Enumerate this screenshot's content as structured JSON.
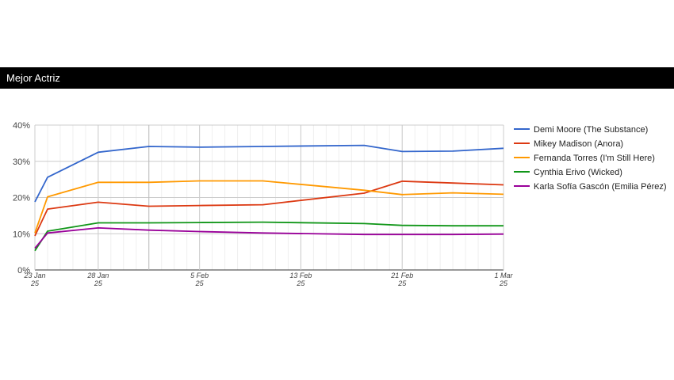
{
  "header": {
    "title": "Mejor Actriz"
  },
  "chart_data": {
    "type": "line",
    "title": "",
    "xlabel": "",
    "ylabel": "",
    "ylim": [
      0,
      40
    ],
    "y_ticks": [
      "0%",
      "10%",
      "20%",
      "30%",
      "40%"
    ],
    "grid": true,
    "legend_position": "right",
    "x_ticks": [
      {
        "date": "2025-01-23",
        "line1": "23 Jan",
        "line2": "25"
      },
      {
        "date": "2025-01-28",
        "line1": "28 Jan",
        "line2": "25"
      },
      {
        "date": "2025-02-05",
        "line1": "5 Feb",
        "line2": "25"
      },
      {
        "date": "2025-02-13",
        "line1": "13 Feb",
        "line2": "25"
      },
      {
        "date": "2025-02-21",
        "line1": "21 Feb",
        "line2": "25"
      },
      {
        "date": "2025-03-01",
        "line1": "1 Mar",
        "line2": "25"
      }
    ],
    "x_range": [
      "2025-01-23",
      "2025-03-01"
    ],
    "x": [
      "2025-01-23",
      "2025-01-24",
      "2025-01-28",
      "2025-02-01",
      "2025-02-05",
      "2025-02-10",
      "2025-02-18",
      "2025-02-21",
      "2025-02-25",
      "2025-03-01"
    ],
    "series": [
      {
        "name": "Demi Moore (The Substance)",
        "color": "#3366cc",
        "values": [
          18.8,
          25.6,
          32.5,
          34.1,
          33.9,
          34.1,
          34.4,
          32.7,
          32.8,
          33.6
        ]
      },
      {
        "name": "Mikey Madison (Anora)",
        "color": "#dc3912",
        "values": [
          9.4,
          16.8,
          18.7,
          17.6,
          17.8,
          18.0,
          21.2,
          24.5,
          24.0,
          23.5
        ]
      },
      {
        "name": "Fernanda Torres (I'm Still Here)",
        "color": "#ff9900",
        "values": [
          10.2,
          20.2,
          24.2,
          24.2,
          24.6,
          24.6,
          22.0,
          20.8,
          21.3,
          20.9
        ]
      },
      {
        "name": "Cynthia Erivo (Wicked)",
        "color": "#109618",
        "values": [
          5.3,
          10.7,
          13.0,
          13.0,
          13.1,
          13.2,
          12.8,
          12.3,
          12.2,
          12.2
        ]
      },
      {
        "name": "Karla Sofía Gascón (Emilia Pérez)",
        "color": "#990099",
        "values": [
          6.0,
          10.2,
          11.6,
          11.0,
          10.6,
          10.2,
          9.8,
          9.8,
          9.8,
          9.9
        ]
      }
    ]
  }
}
